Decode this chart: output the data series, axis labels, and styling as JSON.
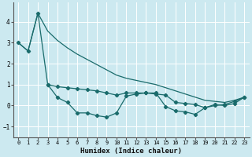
{
  "xlabel": "Humidex (Indice chaleur)",
  "xlim": [
    -0.5,
    23.5
  ],
  "ylim": [
    -1.5,
    4.9
  ],
  "yticks": [
    -1,
    0,
    1,
    2,
    3,
    4
  ],
  "xticks": [
    0,
    1,
    2,
    3,
    4,
    5,
    6,
    7,
    8,
    9,
    10,
    11,
    12,
    13,
    14,
    15,
    16,
    17,
    18,
    19,
    20,
    21,
    22,
    23
  ],
  "background_color": "#cce9f0",
  "grid_color": "#ffffff",
  "line_color": "#1a6b6b",
  "line_diag_x": [
    0,
    1,
    2,
    3,
    4,
    5,
    6,
    7,
    8,
    9,
    10,
    11,
    12,
    13,
    14,
    15,
    16,
    17,
    18,
    19,
    20,
    21,
    22,
    23
  ],
  "line_diag_y": [
    3.0,
    2.6,
    4.4,
    3.55,
    3.1,
    2.75,
    2.45,
    2.2,
    1.95,
    1.7,
    1.45,
    1.3,
    1.2,
    1.1,
    1.0,
    0.85,
    0.7,
    0.55,
    0.4,
    0.25,
    0.2,
    0.15,
    0.25,
    0.4
  ],
  "line_mid_x": [
    3,
    4,
    5,
    6,
    7,
    8,
    9,
    10,
    11,
    12,
    13,
    14,
    15,
    16,
    17,
    18,
    19,
    20,
    21,
    22,
    23
  ],
  "line_mid_y": [
    1.0,
    0.9,
    0.85,
    0.8,
    0.75,
    0.7,
    0.6,
    0.5,
    0.6,
    0.6,
    0.6,
    0.55,
    0.5,
    0.15,
    0.1,
    0.05,
    -0.1,
    0.0,
    0.05,
    0.2,
    0.4
  ],
  "line_zig_x": [
    0,
    1,
    2,
    3,
    4,
    5,
    6,
    7,
    8,
    9,
    10,
    11,
    12,
    13,
    14,
    15,
    16,
    17,
    18,
    19,
    20,
    21,
    22,
    23
  ],
  "line_zig_y": [
    3.0,
    2.6,
    4.4,
    1.0,
    0.38,
    0.15,
    -0.35,
    -0.35,
    -0.48,
    -0.55,
    -0.35,
    0.45,
    0.55,
    0.6,
    0.6,
    -0.05,
    -0.25,
    -0.3,
    -0.42,
    -0.1,
    0.05,
    0.0,
    0.1,
    0.4
  ]
}
